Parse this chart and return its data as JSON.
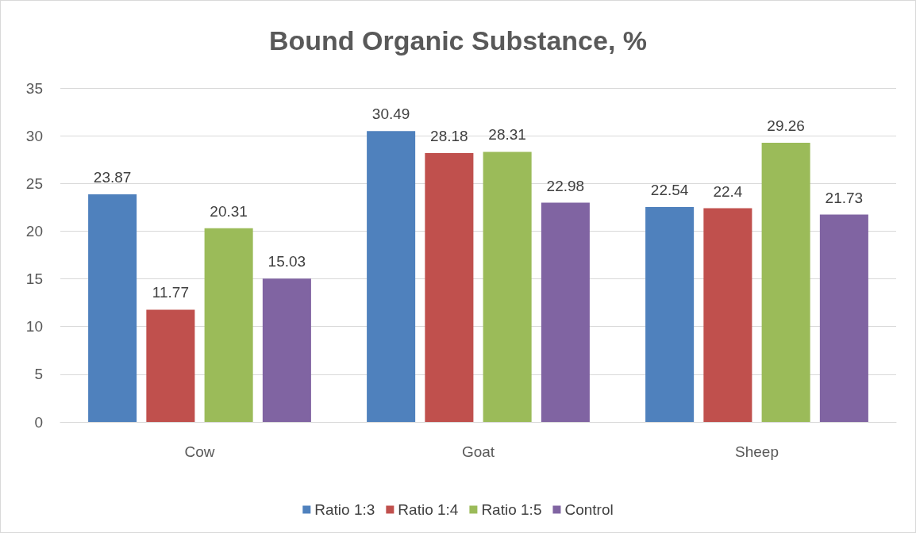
{
  "chart_data": {
    "type": "bar",
    "title": "Bound Organic Substance, %",
    "categories": [
      "Cow",
      "Goat",
      "Sheep"
    ],
    "series": [
      {
        "name": "Ratio 1:3",
        "color": "#4f81bd",
        "values": [
          23.87,
          30.49,
          22.54
        ]
      },
      {
        "name": "Ratio 1:4",
        "color": "#c0504d",
        "values": [
          11.77,
          28.18,
          22.4
        ]
      },
      {
        "name": "Ratio 1:5",
        "color": "#9bbb59",
        "values": [
          20.31,
          28.31,
          29.26
        ]
      },
      {
        "name": "Control",
        "color": "#8064a2",
        "values": [
          15.03,
          22.98,
          21.73
        ]
      }
    ],
    "ylim": [
      0,
      35
    ],
    "yticks": [
      0,
      5,
      10,
      15,
      20,
      25,
      30,
      35
    ],
    "grid": "y",
    "legend": "bottom",
    "data_labels": true
  }
}
